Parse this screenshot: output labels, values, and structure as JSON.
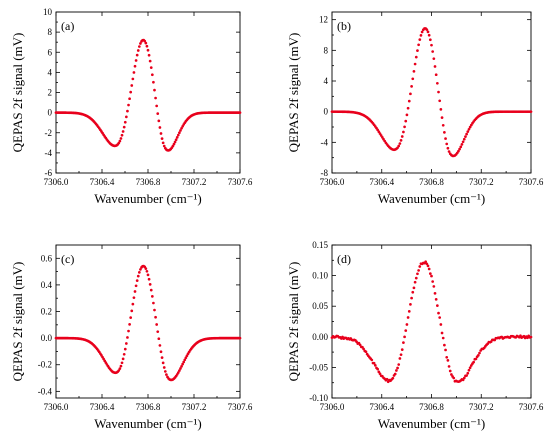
{
  "chart_data": [
    {
      "type": "scatter",
      "panel_label": "(a)",
      "xlabel": "Wavenumber (cm⁻¹)",
      "ylabel": "QEPAS 2f signal (mV)",
      "xlim": [
        7306.0,
        7307.6
      ],
      "ylim": [
        -6,
        10
      ],
      "xticks": [
        "7306.0",
        "7306.4",
        "7306.8",
        "7307.2",
        "7307.6"
      ],
      "yticks": [
        "-6",
        "-4",
        "-2",
        "0",
        "2",
        "4",
        "6",
        "8",
        "10"
      ],
      "grid": false,
      "line_color": "#e8001c",
      "profile": {
        "peak_x": 7306.76,
        "peak_y": 7.5,
        "left_min_x": 7306.53,
        "left_min_y": -3.5,
        "right_min_x": 7306.95,
        "right_min_y": -4.3,
        "noise": 0
      }
    },
    {
      "type": "scatter",
      "panel_label": "(b)",
      "xlabel": "Wavenumber (cm⁻¹)",
      "ylabel": "QEPAS 2f signal (mV)",
      "xlim": [
        7306.0,
        7307.6
      ],
      "ylim": [
        -8,
        13
      ],
      "xticks": [
        "7306.0",
        "7306.4",
        "7306.8",
        "7307.2",
        "7307.6"
      ],
      "yticks": [
        "-8",
        "-4",
        "0",
        "4",
        "8",
        "12"
      ],
      "grid": false,
      "line_color": "#e8001c",
      "profile": {
        "peak_x": 7306.75,
        "peak_y": 11.3,
        "left_min_x": 7306.52,
        "left_min_y": -5.3,
        "right_min_x": 7306.95,
        "right_min_y": -6.5,
        "noise": 0
      }
    },
    {
      "type": "scatter",
      "panel_label": "(c)",
      "xlabel": "Wavenumber (cm⁻¹)",
      "ylabel": "QEPAS 2f signal (mV)",
      "xlim": [
        7306.0,
        7307.6
      ],
      "ylim": [
        -0.45,
        0.7
      ],
      "xticks": [
        "7306.0",
        "7306.4",
        "7306.8",
        "7307.2",
        "7307.6"
      ],
      "yticks": [
        "-0.4",
        "-0.2",
        "0.0",
        "0.2",
        "0.4",
        "0.6"
      ],
      "grid": false,
      "line_color": "#e8001c",
      "profile": {
        "peak_x": 7306.76,
        "peak_y": 0.565,
        "left_min_x": 7306.54,
        "left_min_y": -0.285,
        "right_min_x": 7306.98,
        "right_min_y": -0.34,
        "noise": 0
      }
    },
    {
      "type": "scatter",
      "panel_label": "(d)",
      "xlabel": "Wavenumber (cm⁻¹)",
      "ylabel": "QEPAS 2f signal (mV)",
      "xlim": [
        7306.0,
        7307.6
      ],
      "ylim": [
        -0.1,
        0.15
      ],
      "xticks": [
        "7306.0",
        "7306.4",
        "7306.8",
        "7307.2",
        "7307.6"
      ],
      "yticks": [
        "-0.10",
        "-0.05",
        "0.00",
        "0.05",
        "0.10",
        "0.15"
      ],
      "grid": false,
      "line_color": "#e8001c",
      "profile": {
        "peak_x": 7306.74,
        "peak_y": 0.128,
        "left_min_x": 7306.48,
        "left_min_y": -0.077,
        "right_min_x": 7306.99,
        "right_min_y": -0.08,
        "noise": 0.002
      }
    }
  ]
}
